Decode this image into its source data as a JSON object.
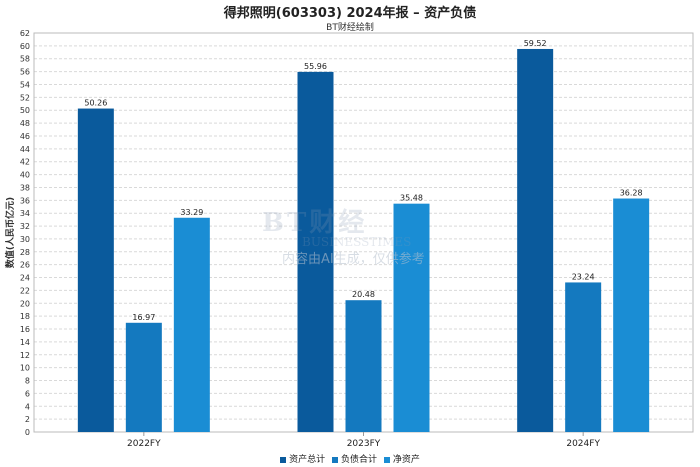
{
  "title": "得邦照明(603303) 2024年报 – 资产负债",
  "subtitle": "BT财经绘制",
  "watermark": {
    "logo": "BT财经",
    "sub": "BUSINESSTIMES",
    "note": "内容由AI生成，仅供参考"
  },
  "chart_data": {
    "type": "bar",
    "categories": [
      "2022FY",
      "2023FY",
      "2024FY"
    ],
    "ylabel": "数值(人民币亿元)",
    "ylim": [
      0,
      62
    ],
    "ytick_step": 2,
    "grid": true,
    "legend_position": "bottom",
    "series": [
      {
        "name": "资产总计",
        "color": "#0a5a9c",
        "values": [
          50.26,
          55.96,
          59.52
        ],
        "labels": [
          "50.26",
          "55.96",
          "59.52"
        ]
      },
      {
        "name": "负债合计",
        "color": "#1479bf",
        "values": [
          16.97,
          20.48,
          23.24
        ],
        "labels": [
          "16.97",
          "20.48",
          "23.24"
        ]
      },
      {
        "name": "净资产",
        "color": "#1a8dd4",
        "values": [
          33.29,
          35.48,
          36.28
        ],
        "labels": [
          "33.29",
          "35.48",
          "36.28"
        ]
      }
    ]
  }
}
